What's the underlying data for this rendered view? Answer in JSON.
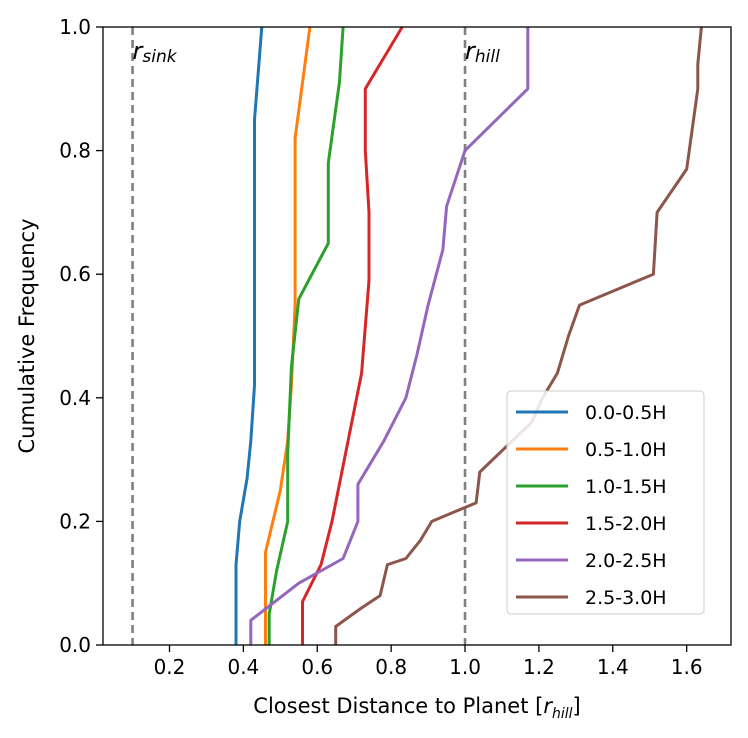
{
  "chart_data": {
    "type": "line",
    "title": "",
    "xlabel": "Closest Distance to Planet [",
    "xlabel_unit": "r",
    "xlabel_unit_sub": "hill",
    "xlabel_close": "]",
    "ylabel": "Cumulative Frequency",
    "xlim": [
      0.02,
      1.72
    ],
    "ylim": [
      0.0,
      1.0
    ],
    "xticks": [
      0.2,
      0.4,
      0.6,
      0.8,
      1.0,
      1.2,
      1.4,
      1.6
    ],
    "xtick_labels": [
      "0.2",
      "0.4",
      "0.6",
      "0.8",
      "1.0",
      "1.2",
      "1.4",
      "1.6"
    ],
    "yticks": [
      0.0,
      0.2,
      0.4,
      0.6,
      0.8,
      1.0
    ],
    "ytick_labels": [
      "0.0",
      "0.2",
      "0.4",
      "0.6",
      "0.8",
      "1.0"
    ],
    "grid": false,
    "legend_position": "lower-right",
    "reference_lines": [
      {
        "x": 0.1,
        "label": "r",
        "label_sub": "sink",
        "color": "#808080",
        "style": "dashed"
      },
      {
        "x": 1.0,
        "label": "r",
        "label_sub": "hill",
        "color": "#808080",
        "style": "dashed"
      }
    ],
    "series": [
      {
        "name": "0.0-0.5H",
        "color": "#1f77b4",
        "points": [
          [
            0.38,
            0.0
          ],
          [
            0.38,
            0.13
          ],
          [
            0.39,
            0.2
          ],
          [
            0.41,
            0.27
          ],
          [
            0.42,
            0.33
          ],
          [
            0.43,
            0.42
          ],
          [
            0.43,
            0.6
          ],
          [
            0.43,
            0.85
          ],
          [
            0.45,
            1.0
          ]
        ]
      },
      {
        "name": "0.5-1.0H",
        "color": "#ff7f0e",
        "points": [
          [
            0.46,
            0.0
          ],
          [
            0.46,
            0.15
          ],
          [
            0.5,
            0.25
          ],
          [
            0.52,
            0.33
          ],
          [
            0.53,
            0.42
          ],
          [
            0.54,
            0.55
          ],
          [
            0.54,
            0.7
          ],
          [
            0.54,
            0.82
          ],
          [
            0.58,
            1.0
          ]
        ]
      },
      {
        "name": "1.0-1.5H",
        "color": "#2ca02c",
        "points": [
          [
            0.47,
            0.0
          ],
          [
            0.47,
            0.05
          ],
          [
            0.49,
            0.12
          ],
          [
            0.52,
            0.2
          ],
          [
            0.52,
            0.31
          ],
          [
            0.53,
            0.45
          ],
          [
            0.55,
            0.56
          ],
          [
            0.63,
            0.65
          ],
          [
            0.63,
            0.78
          ],
          [
            0.66,
            0.91
          ],
          [
            0.67,
            1.0
          ]
        ]
      },
      {
        "name": "1.5-2.0H",
        "color": "#d62728",
        "points": [
          [
            0.56,
            0.0
          ],
          [
            0.56,
            0.07
          ],
          [
            0.61,
            0.13
          ],
          [
            0.64,
            0.2
          ],
          [
            0.67,
            0.29
          ],
          [
            0.72,
            0.44
          ],
          [
            0.74,
            0.59
          ],
          [
            0.74,
            0.7
          ],
          [
            0.73,
            0.8
          ],
          [
            0.73,
            0.9
          ],
          [
            0.83,
            1.0
          ]
        ]
      },
      {
        "name": "2.0-2.5H",
        "color": "#9467bd",
        "points": [
          [
            0.42,
            0.0
          ],
          [
            0.42,
            0.04
          ],
          [
            0.55,
            0.1
          ],
          [
            0.67,
            0.14
          ],
          [
            0.71,
            0.2
          ],
          [
            0.71,
            0.26
          ],
          [
            0.78,
            0.33
          ],
          [
            0.84,
            0.4
          ],
          [
            0.87,
            0.47
          ],
          [
            0.9,
            0.55
          ],
          [
            0.94,
            0.64
          ],
          [
            0.95,
            0.71
          ],
          [
            1.0,
            0.8
          ],
          [
            1.17,
            0.9
          ],
          [
            1.17,
            1.0
          ]
        ]
      },
      {
        "name": "2.5-3.0H",
        "color": "#8c564b",
        "points": [
          [
            0.65,
            0.0
          ],
          [
            0.65,
            0.03
          ],
          [
            0.72,
            0.06
          ],
          [
            0.77,
            0.08
          ],
          [
            0.79,
            0.13
          ],
          [
            0.84,
            0.14
          ],
          [
            0.88,
            0.17
          ],
          [
            0.91,
            0.2
          ],
          [
            0.99,
            0.22
          ],
          [
            1.03,
            0.23
          ],
          [
            1.04,
            0.28
          ],
          [
            1.18,
            0.36
          ],
          [
            1.21,
            0.4
          ],
          [
            1.25,
            0.44
          ],
          [
            1.28,
            0.5
          ],
          [
            1.31,
            0.55
          ],
          [
            1.39,
            0.57
          ],
          [
            1.51,
            0.6
          ],
          [
            1.52,
            0.7
          ],
          [
            1.6,
            0.77
          ],
          [
            1.63,
            0.9
          ],
          [
            1.63,
            0.94
          ],
          [
            1.64,
            1.0
          ]
        ]
      }
    ]
  }
}
